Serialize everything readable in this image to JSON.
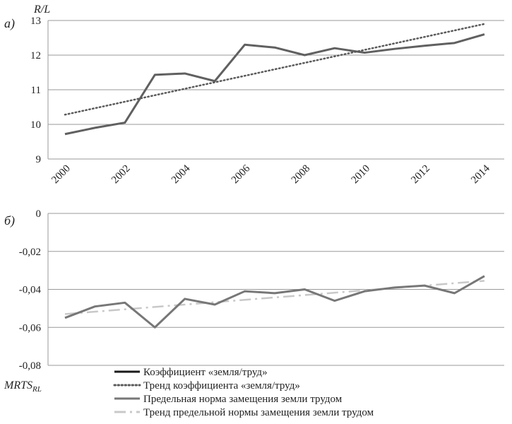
{
  "chart_data": [
    {
      "panel_label": "а)",
      "type": "line",
      "ylabel": "R/L",
      "ylim": [
        9,
        13
      ],
      "yticks": [
        9,
        10,
        11,
        12,
        13
      ],
      "ytick_labels": [
        "9",
        "10",
        "11",
        "12",
        "13"
      ],
      "xlim": [
        2000,
        2014
      ],
      "xtick_labels": [
        "2000",
        "2002",
        "2004",
        "2006",
        "2008",
        "2010",
        "2012",
        "2014"
      ],
      "grid": true,
      "series": [
        {
          "name": "Коэффициент «земля/труд»",
          "color": "#606060",
          "x": [
            2000,
            2001,
            2002,
            2003,
            2004,
            2005,
            2006,
            2007,
            2008,
            2009,
            2010,
            2011,
            2012,
            2013,
            2014
          ],
          "values": [
            9.72,
            9.9,
            10.05,
            11.43,
            11.47,
            11.25,
            12.3,
            12.22,
            12.0,
            12.2,
            12.07,
            12.18,
            12.27,
            12.35,
            12.6
          ]
        },
        {
          "name": "Тренд коэффициента «земля/труд»",
          "color": "#5a5a5a",
          "x": [
            2000,
            2014
          ],
          "values": [
            10.28,
            12.9
          ]
        }
      ]
    },
    {
      "panel_label": "б)",
      "type": "line",
      "ylabel": "MRTS",
      "ylabel_sub": "RL",
      "ylim": [
        -0.08,
        0
      ],
      "yticks": [
        -0.08,
        -0.06,
        -0.04,
        -0.02,
        0
      ],
      "ytick_labels": [
        "-0,08",
        "-0,06",
        "-0,04",
        "-0,02",
        "0"
      ],
      "xlim": [
        2000,
        2014
      ],
      "grid": true,
      "series": [
        {
          "name": "Предельная норма замещения земли трудом",
          "color": "#777777",
          "x": [
            2000,
            2001,
            2002,
            2003,
            2004,
            2005,
            2006,
            2007,
            2008,
            2009,
            2010,
            2011,
            2012,
            2013,
            2014
          ],
          "values": [
            -0.055,
            -0.049,
            -0.047,
            -0.06,
            -0.045,
            -0.048,
            -0.041,
            -0.042,
            -0.04,
            -0.046,
            -0.041,
            -0.039,
            -0.038,
            -0.042,
            -0.033
          ]
        },
        {
          "name": "Тренд предельной нормы замещения земли трудом",
          "color": "#c8c8c8",
          "x": [
            2000,
            2014
          ],
          "values": [
            -0.053,
            -0.0355
          ]
        }
      ]
    }
  ],
  "legend": {
    "placement": "bottom",
    "items": [
      {
        "label": "Коэффициент  «земля/труд»",
        "color": "#1a1a1a",
        "style": "solid"
      },
      {
        "label": "Тренд коэффициента  «земля/труд»",
        "color": "#5a5a5a",
        "style": "dotted"
      },
      {
        "label": "Предельная норма замещения земли трудом",
        "color": "#777777",
        "style": "solid"
      },
      {
        "label": "Тренд предельной нормы замещения земли трудом",
        "color": "#c8c8c8",
        "style": "dashdot"
      }
    ]
  }
}
